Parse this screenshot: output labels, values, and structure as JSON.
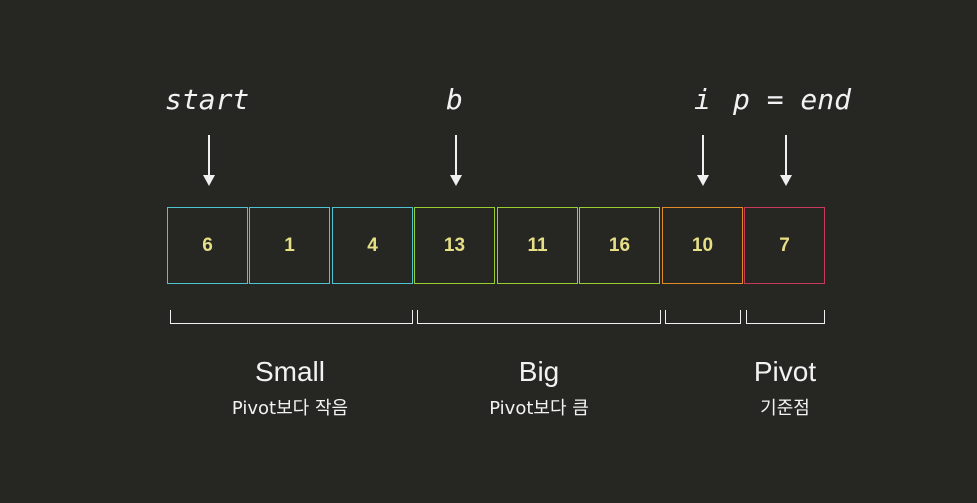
{
  "pointers": [
    "start",
    "b",
    "i",
    "p = end"
  ],
  "cells": [
    {
      "value": "6",
      "color": "#4fc3d3"
    },
    {
      "value": "1",
      "color": "#4fc3d3"
    },
    {
      "value": "4",
      "color": "#4fc3d3"
    },
    {
      "value": "13",
      "color": "#9acd32"
    },
    {
      "value": "11",
      "color": "#9acd32"
    },
    {
      "value": "16",
      "color": "#9acd32"
    },
    {
      "value": "10",
      "color": "#e08a2a"
    },
    {
      "value": "7",
      "color": "#c83a5c"
    }
  ],
  "groups": [
    {
      "title": "Small",
      "subtitle": "Pivot보다 작음"
    },
    {
      "title": "Big",
      "subtitle": "Pivot보다 큼"
    },
    {
      "title": "Pivot",
      "subtitle": "기준점"
    }
  ]
}
